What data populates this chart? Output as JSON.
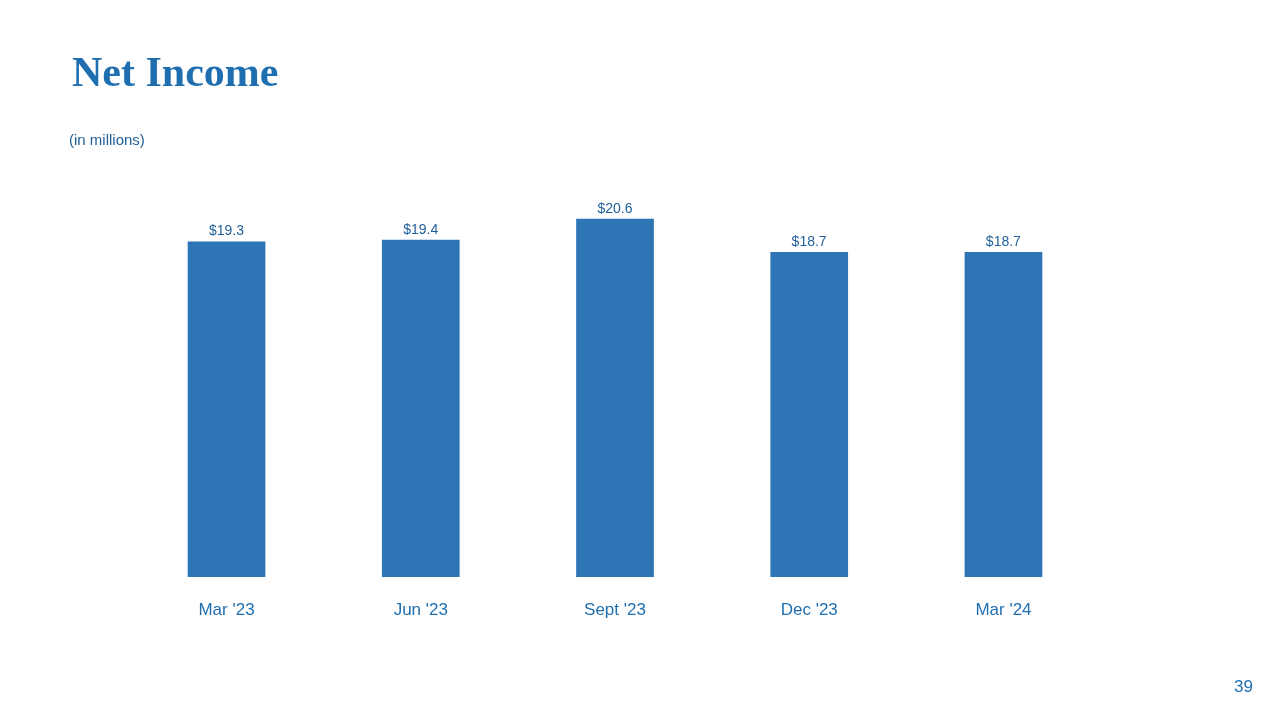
{
  "chart_data": {
    "type": "bar",
    "title": "Net Income",
    "subtitle": "(in millions)",
    "categories": [
      "Mar '23",
      "Jun '23",
      "Sept '23",
      "Dec '23",
      "Mar '24"
    ],
    "values": [
      19.3,
      19.4,
      20.6,
      18.7,
      18.7
    ],
    "value_labels": [
      "$19.3",
      "$19.4",
      "$20.6",
      "$18.7",
      "$18.7"
    ],
    "color": "#2e75b6",
    "tick_labels": "x",
    "legend": false,
    "annotations": [
      "39"
    ]
  }
}
